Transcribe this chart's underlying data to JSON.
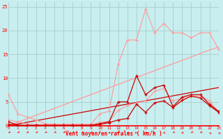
{
  "x": [
    0,
    1,
    2,
    3,
    4,
    5,
    6,
    7,
    8,
    9,
    10,
    11,
    12,
    13,
    14,
    15,
    16,
    17,
    18,
    19,
    20,
    21,
    22,
    23
  ],
  "line_upper_light": [
    6.5,
    2.5,
    1.8,
    1.2,
    0.4,
    0.3,
    0.3,
    0.3,
    0.3,
    0.3,
    2.5,
    3.0,
    13.0,
    18.0,
    18.0,
    24.5,
    19.5,
    21.5,
    19.5,
    19.5,
    18.5,
    19.5,
    19.5,
    16.0
  ],
  "line_lower_light": [
    1.2,
    0.8,
    0.4,
    0.2,
    0.2,
    0.2,
    0.2,
    0.2,
    0.2,
    0.2,
    0.7,
    0.9,
    3.2,
    4.2,
    4.8,
    5.2,
    7.2,
    7.8,
    5.2,
    5.8,
    6.2,
    6.2,
    5.2,
    2.8
  ],
  "line_upper_dark": [
    0.8,
    0.1,
    0.05,
    0.05,
    0.05,
    0.05,
    0.05,
    0.05,
    0.05,
    0.05,
    0.4,
    0.8,
    5.0,
    5.0,
    10.5,
    6.5,
    8.0,
    8.5,
    4.0,
    6.0,
    6.5,
    6.5,
    4.5,
    3.0
  ],
  "line_lower_dark": [
    0.3,
    0.05,
    0.05,
    0.05,
    0.05,
    0.05,
    0.05,
    0.05,
    0.05,
    0.05,
    0.3,
    0.6,
    1.2,
    1.5,
    4.5,
    2.8,
    4.8,
    5.2,
    3.8,
    5.3,
    6.2,
    5.8,
    4.2,
    2.8
  ],
  "line_diag_light": [
    0.0,
    0.72,
    1.44,
    2.17,
    2.89,
    3.61,
    4.33,
    5.06,
    5.78,
    6.5,
    7.22,
    7.94,
    8.67,
    9.39,
    10.11,
    10.83,
    11.56,
    12.28,
    13.0,
    13.72,
    14.44,
    15.17,
    15.89,
    16.5
  ],
  "line_diag_dark": [
    0.0,
    0.35,
    0.7,
    1.04,
    1.39,
    1.74,
    2.09,
    2.43,
    2.78,
    3.13,
    3.48,
    3.83,
    4.17,
    4.52,
    4.87,
    5.22,
    5.57,
    5.91,
    6.26,
    6.61,
    6.96,
    7.3,
    7.65,
    8.0
  ],
  "bg_color": "#c8eef0",
  "grid_color": "#a0c8c0",
  "light_pink": "#ff9999",
  "dark_red": "#cc0000",
  "xlabel": "Vent moyen/en rafales ( km/h )",
  "ylim": [
    0,
    26
  ],
  "xlim": [
    0,
    23
  ]
}
